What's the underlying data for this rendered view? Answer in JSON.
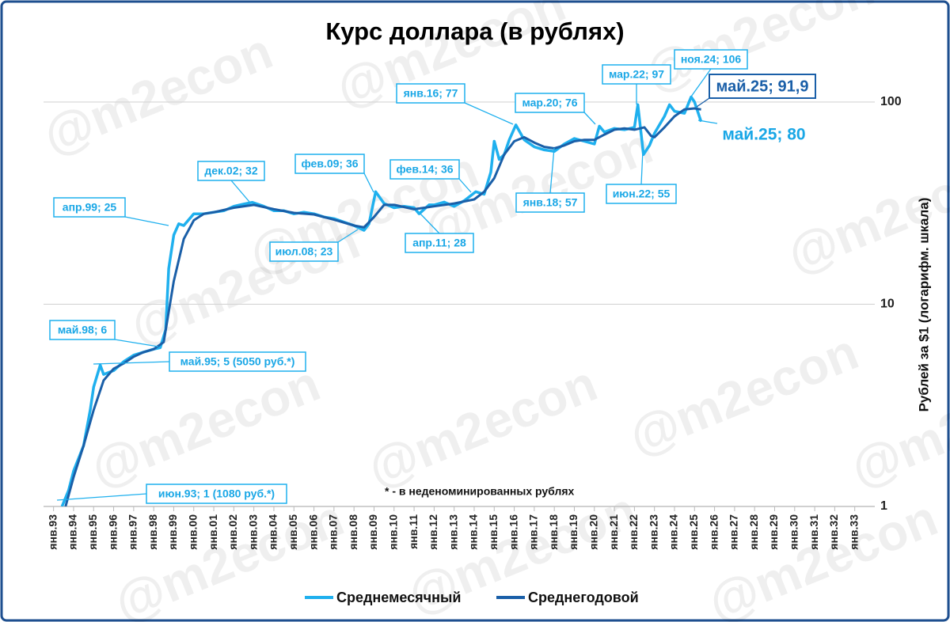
{
  "chart_data": {
    "type": "line",
    "title": "Курс доллара (в рублях)",
    "y_label": "Рублей за $1 (логарифм. шкала)",
    "footnote": "* - в неденоминированных рублях",
    "watermark": "@m2econ",
    "log_scale": true,
    "grid": true,
    "xlim": [
      1992.5,
      2034
    ],
    "ylim": [
      1,
      200
    ],
    "yticks": [
      1,
      10,
      100
    ],
    "xticks": [
      {
        "value": 1993,
        "label": "янв.93"
      },
      {
        "value": 1994,
        "label": "янв.94"
      },
      {
        "value": 1995,
        "label": "янв.95"
      },
      {
        "value": 1996,
        "label": "янв.96"
      },
      {
        "value": 1997,
        "label": "янв.97"
      },
      {
        "value": 1998,
        "label": "янв.98"
      },
      {
        "value": 1999,
        "label": "янв.99"
      },
      {
        "value": 2000,
        "label": "янв.00"
      },
      {
        "value": 2001,
        "label": "янв.01"
      },
      {
        "value": 2002,
        "label": "янв.02"
      },
      {
        "value": 2003,
        "label": "янв.03"
      },
      {
        "value": 2004,
        "label": "янв.04"
      },
      {
        "value": 2005,
        "label": "янв.05"
      },
      {
        "value": 2006,
        "label": "янв.06"
      },
      {
        "value": 2007,
        "label": "янв.07"
      },
      {
        "value": 2008,
        "label": "янв.08"
      },
      {
        "value": 2009,
        "label": "янв.09"
      },
      {
        "value": 2010,
        "label": "янв.10"
      },
      {
        "value": 2011,
        "label": "янв.11"
      },
      {
        "value": 2012,
        "label": "янв.12"
      },
      {
        "value": 2013,
        "label": "янв.13"
      },
      {
        "value": 2014,
        "label": "янв.14"
      },
      {
        "value": 2015,
        "label": "янв.15"
      },
      {
        "value": 2016,
        "label": "янв.16"
      },
      {
        "value": 2017,
        "label": "янв.17"
      },
      {
        "value": 2018,
        "label": "янв.18"
      },
      {
        "value": 2019,
        "label": "янв.19"
      },
      {
        "value": 2020,
        "label": "янв.20"
      },
      {
        "value": 2021,
        "label": "янв.21"
      },
      {
        "value": 2022,
        "label": "янв.22"
      },
      {
        "value": 2023,
        "label": "янв.23"
      },
      {
        "value": 2024,
        "label": "янв.24"
      },
      {
        "value": 2025,
        "label": "янв.25"
      },
      {
        "value": 2026,
        "label": "янв.26"
      },
      {
        "value": 2027,
        "label": "янв.27"
      },
      {
        "value": 2028,
        "label": "янв.28"
      },
      {
        "value": 2029,
        "label": "янв.29"
      },
      {
        "value": 2030,
        "label": "янв.30"
      },
      {
        "value": 2031,
        "label": "янв.31"
      },
      {
        "value": 2032,
        "label": "янв.32"
      },
      {
        "value": 2033,
        "label": "янв.33"
      }
    ],
    "series": [
      {
        "name": "Среднемесячный",
        "color": "#1fb0ee",
        "x": [
          1993.42,
          1993.75,
          1994.0,
          1994.5,
          1994.83,
          1995.0,
          1995.33,
          1995.5,
          1996.0,
          1996.5,
          1997.0,
          1997.5,
          1998.0,
          1998.33,
          1998.6,
          1998.75,
          1999.0,
          1999.25,
          1999.5,
          2000.0,
          2000.5,
          2001.0,
          2001.5,
          2002.0,
          2002.5,
          2002.92,
          2003.5,
          2004.0,
          2004.5,
          2005.0,
          2005.5,
          2006.0,
          2006.5,
          2007.0,
          2007.5,
          2008.0,
          2008.5,
          2008.75,
          2009.08,
          2009.5,
          2010.0,
          2010.5,
          2011.0,
          2011.25,
          2011.75,
          2012.0,
          2012.5,
          2013.0,
          2013.5,
          2014.08,
          2014.5,
          2014.83,
          2015.0,
          2015.25,
          2015.5,
          2015.75,
          2016.08,
          2016.5,
          2017.0,
          2017.5,
          2018.0,
          2018.5,
          2019.0,
          2019.5,
          2020.0,
          2020.25,
          2020.5,
          2021.0,
          2021.5,
          2022.0,
          2022.17,
          2022.45,
          2022.75,
          2023.0,
          2023.5,
          2023.75,
          2024.0,
          2024.5,
          2024.83,
          2025.0,
          2025.33
        ],
        "values": [
          1.0,
          1.2,
          1.5,
          2.0,
          3.0,
          3.9,
          5.0,
          4.5,
          4.7,
          5.2,
          5.6,
          5.8,
          6.0,
          6.1,
          7.5,
          15,
          22,
          25,
          24.5,
          28,
          28,
          28.5,
          29,
          30.5,
          31.3,
          31.9,
          30.5,
          29,
          29,
          28,
          28.5,
          28,
          27,
          26.5,
          25.5,
          24.5,
          23.2,
          25,
          36,
          31.5,
          30,
          30.5,
          30,
          28,
          31,
          31,
          32,
          30.5,
          32.5,
          36,
          35,
          45,
          64,
          52,
          55,
          65,
          77,
          65,
          60,
          58,
          57,
          62,
          66,
          64,
          62,
          76,
          71,
          74,
          73,
          75,
          97,
          55,
          61,
          70,
          85,
          97,
          90,
          88,
          106,
          100,
          80
        ]
      },
      {
        "name": "Среднегодовой",
        "color": "#1a5fa8",
        "x": [
          1993.6,
          1994.0,
          1994.5,
          1995.0,
          1995.5,
          1996.0,
          1996.5,
          1997.0,
          1997.5,
          1998.0,
          1998.5,
          1999.0,
          1999.5,
          2000.0,
          2000.5,
          2001.0,
          2002.0,
          2003.0,
          2004.0,
          2005.0,
          2006.0,
          2007.0,
          2008.0,
          2008.5,
          2009.0,
          2009.5,
          2010.0,
          2011.0,
          2012.0,
          2013.0,
          2014.0,
          2014.5,
          2015.0,
          2015.5,
          2016.0,
          2016.5,
          2017.0,
          2017.5,
          2018.0,
          2018.5,
          2019.0,
          2019.5,
          2020.0,
          2020.5,
          2021.0,
          2021.5,
          2022.0,
          2022.5,
          2022.83,
          2023.0,
          2023.5,
          2024.0,
          2024.5,
          2025.0,
          2025.33
        ],
        "values": [
          1.0,
          1.4,
          2.0,
          3.0,
          4.2,
          4.8,
          5.1,
          5.5,
          5.8,
          6.0,
          6.5,
          13,
          21,
          26,
          28,
          28.5,
          30,
          31,
          29.5,
          28.3,
          27.8,
          26.2,
          24.5,
          24,
          27,
          31,
          31,
          29.5,
          30.5,
          31.5,
          33,
          36,
          42,
          55,
          64,
          67,
          63,
          60,
          59,
          61,
          64,
          65,
          65,
          69,
          73,
          74,
          73,
          75,
          68,
          67,
          75,
          85,
          92,
          93,
          91.9
        ]
      }
    ],
    "annotations": [
      "июн.93; 1 (1080 руб.*)",
      "май.95; 5 (5050 руб.*)",
      "май.98; 6",
      "апр.99; 25",
      "дек.02; 32",
      "июл.08; 23",
      "фев.09; 36",
      "апр.11; 28",
      "фев.14; 36",
      "янв.16; 77",
      "янв.18; 57",
      "мар.20; 76",
      "мар.22; 97",
      "июн.22; 55",
      "ноя.24; 106",
      "май.25; 91,9",
      "май.25; 80"
    ]
  }
}
